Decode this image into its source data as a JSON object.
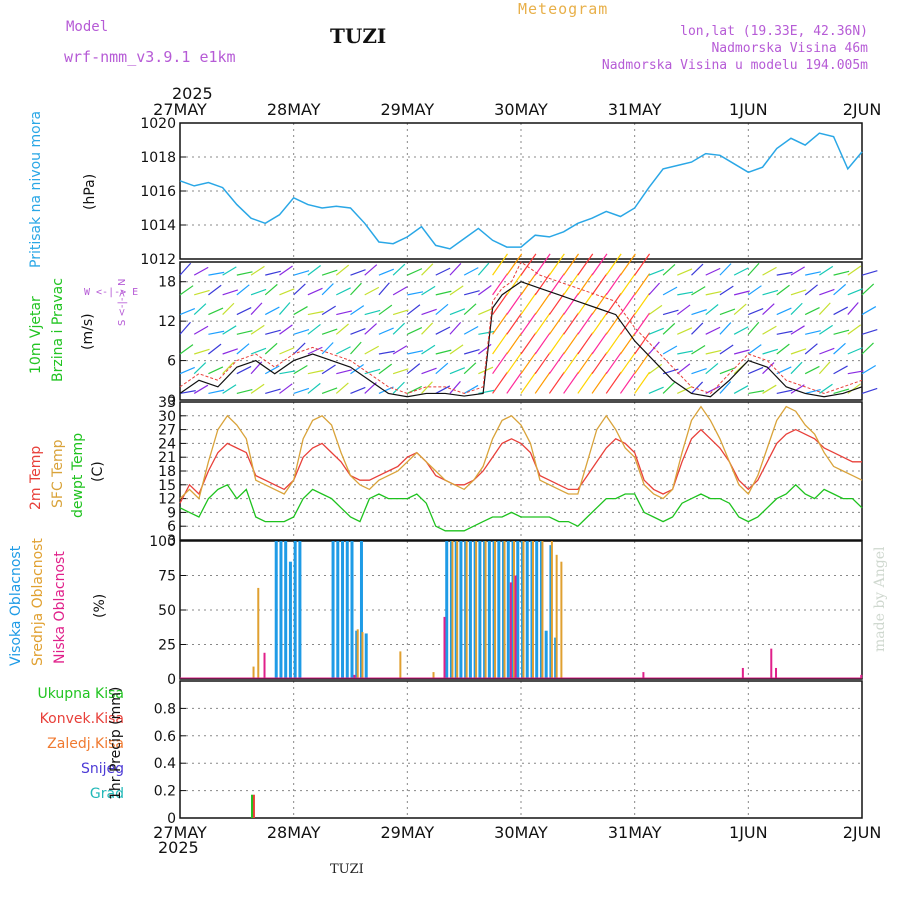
{
  "header": {
    "model_label": "Model",
    "model_name": "wrf-nmm_v3.9.1 e1km",
    "station": "TUZI",
    "meteogram": "Meteogram",
    "lonlat": "lon,lat (19.33E, 42.36N)",
    "elevation": "Nadmorska Visina 46m",
    "model_elevation": "Nadmorska Visina u modelu 194.005m",
    "year_top": "2025",
    "year_bottom": "2025",
    "footer_station": "TUZI",
    "credit": "made by Angel"
  },
  "colors": {
    "pressure": "#2aa7e6",
    "temp2m": "#e8403a",
    "sfc": "#d9a33a",
    "dewpt": "#1ec21e",
    "high": "#1e9be6",
    "mid": "#e0a030",
    "low": "#e0208a",
    "text_purple": "#b65bd6",
    "text_green": "#22c422",
    "text_orange": "#f07a30"
  },
  "panel_labels": {
    "pressure": [
      "Pritisak na nivou mora",
      "(hPa)"
    ],
    "wind": [
      "10m Vjetar",
      "Brzina i Pravac",
      "(m/s)"
    ],
    "compass": "W <-|-> E",
    "compass_ns": "S <-|-> N",
    "temp": [
      "2m Temp",
      "SFC Temp",
      "dewpt Temp",
      "(C)"
    ],
    "cloud": [
      "Visoka Oblacnost",
      "Srednja Oblacnost",
      "Niska Oblacnost",
      "(%)"
    ],
    "precip_legend": [
      "Ukupna Kisa",
      "Konvek.Kisa",
      "Zaledj.Kisa",
      "Snijeg",
      "Grad"
    ],
    "precip_axis": "1hr Precip (mm)"
  },
  "chart_data": [
    {
      "type": "line",
      "name": "pressure",
      "x_ticks": [
        "27MAY",
        "28MAY",
        "29MAY",
        "30MAY",
        "31MAY",
        "1JUN",
        "2JUN"
      ],
      "ylim": [
        1012,
        1020
      ],
      "yticks": [
        1012,
        1014,
        1016,
        1018,
        1020
      ],
      "grid": true,
      "series": [
        {
          "name": "Pritisak na nivou mora",
          "x": [
            0,
            3,
            6,
            9,
            12,
            15,
            18,
            21,
            24,
            27,
            30,
            33,
            36,
            39,
            42,
            45,
            48,
            51,
            54,
            57,
            60,
            63,
            66,
            69,
            72,
            75,
            78,
            81,
            84,
            87,
            90,
            93,
            96,
            99,
            102,
            105,
            108,
            111,
            114,
            117,
            120,
            123,
            126,
            129,
            132,
            135,
            138,
            141,
            144
          ],
          "values": [
            1016.6,
            1016.3,
            1016.5,
            1016.2,
            1015.2,
            1014.4,
            1014.1,
            1014.6,
            1015.6,
            1015.2,
            1015.0,
            1015.1,
            1015.0,
            1014.1,
            1013.0,
            1012.9,
            1013.3,
            1013.9,
            1012.8,
            1012.6,
            1013.2,
            1013.8,
            1013.1,
            1012.7,
            1012.7,
            1013.4,
            1013.3,
            1013.6,
            1014.1,
            1014.4,
            1014.8,
            1014.5,
            1015.0,
            1016.2,
            1017.3,
            1017.5,
            1017.7,
            1018.2,
            1018.1,
            1017.6,
            1017.1,
            1017.4,
            1018.5,
            1019.1,
            1018.7,
            1019.4,
            1019.2,
            1017.3,
            1018.3
          ]
        }
      ]
    },
    {
      "type": "line",
      "name": "wind",
      "ylim": [
        0,
        21
      ],
      "yticks": [
        0,
        6,
        12,
        18
      ],
      "grid": true,
      "series": [
        {
          "name": "speed",
          "x": [
            0,
            4,
            8,
            12,
            16,
            20,
            24,
            28,
            32,
            36,
            40,
            44,
            48,
            52,
            56,
            60,
            64,
            66,
            68,
            70,
            72,
            76,
            80,
            84,
            88,
            92,
            96,
            100,
            104,
            108,
            112,
            116,
            120,
            124,
            128,
            132,
            136,
            140,
            144
          ],
          "values": [
            1,
            3,
            2,
            5,
            6,
            4,
            6,
            7,
            6,
            5,
            3,
            1,
            0.5,
            1,
            1,
            0.6,
            1,
            14,
            16,
            17,
            18,
            17,
            16,
            15,
            14,
            13,
            9,
            6,
            3,
            1,
            0.5,
            3,
            6,
            5,
            2,
            1,
            0.5,
            1,
            2
          ]
        },
        {
          "name": "gust",
          "x": [
            0,
            4,
            8,
            12,
            16,
            20,
            24,
            28,
            32,
            36,
            40,
            44,
            48,
            52,
            56,
            60,
            64,
            66,
            68,
            70,
            72,
            76,
            80,
            84,
            88,
            92,
            96,
            100,
            104,
            108,
            112,
            116,
            120,
            124,
            128,
            132,
            136,
            140,
            144
          ],
          "values": [
            2,
            4,
            3,
            6,
            7,
            5,
            7,
            8,
            7,
            6,
            4,
            2,
            1,
            2,
            2,
            1,
            2,
            15,
            17,
            18,
            21,
            19,
            18,
            17,
            16,
            15,
            11,
            8,
            5,
            2,
            1,
            4,
            7,
            6,
            3,
            2,
            1,
            2,
            3
          ]
        }
      ]
    },
    {
      "type": "line",
      "name": "temperature",
      "ylim": [
        3,
        33
      ],
      "yticks": [
        3,
        6,
        9,
        12,
        15,
        18,
        21,
        24,
        27,
        30,
        33
      ],
      "grid": true,
      "x": [
        0,
        2,
        4,
        6,
        8,
        10,
        12,
        14,
        16,
        18,
        20,
        22,
        24,
        26,
        28,
        30,
        32,
        34,
        36,
        38,
        40,
        42,
        44,
        46,
        48,
        50,
        52,
        54,
        56,
        58,
        60,
        62,
        64,
        66,
        68,
        70,
        72,
        74,
        76,
        78,
        80,
        82,
        84,
        86,
        88,
        90,
        92,
        94,
        96,
        98,
        100,
        102,
        104,
        106,
        108,
        110,
        112,
        114,
        116,
        118,
        120,
        122,
        124,
        126,
        128,
        130,
        132,
        134,
        136,
        138,
        140,
        142,
        144
      ],
      "series": [
        {
          "name": "2m Temp",
          "values": [
            11,
            15,
            13,
            18,
            22,
            24,
            23,
            22,
            17,
            16,
            15,
            14,
            16,
            21,
            23,
            24,
            22,
            20,
            17,
            16,
            16,
            17,
            18,
            19,
            21,
            22,
            20,
            17,
            16,
            15,
            15,
            16,
            18,
            21,
            24,
            25,
            24,
            22,
            17,
            16,
            15,
            14,
            14,
            17,
            20,
            23,
            25,
            24,
            22,
            16,
            14,
            13,
            14,
            20,
            25,
            27,
            25,
            23,
            20,
            16,
            14,
            16,
            20,
            24,
            26,
            27,
            26,
            25,
            23,
            22,
            21,
            20,
            20
          ]
        },
        {
          "name": "SFC Temp",
          "values": [
            12,
            14,
            12,
            20,
            27,
            30,
            28,
            25,
            16,
            15,
            14,
            13,
            16,
            25,
            29,
            30,
            28,
            22,
            17,
            15,
            14,
            16,
            17,
            18,
            20,
            22,
            20,
            18,
            16,
            15,
            14,
            16,
            19,
            25,
            29,
            30,
            28,
            24,
            16,
            15,
            14,
            13,
            13,
            20,
            27,
            30,
            27,
            23,
            21,
            15,
            13,
            12,
            14,
            22,
            29,
            32,
            29,
            25,
            20,
            15,
            13,
            17,
            23,
            29,
            32,
            31,
            28,
            26,
            22,
            19,
            18,
            17,
            16
          ]
        },
        {
          "name": "dewpt Temp",
          "values": [
            10,
            9,
            8,
            12,
            14,
            15,
            12,
            14,
            8,
            7,
            7,
            7,
            8,
            12,
            14,
            13,
            12,
            10,
            8,
            7,
            12,
            13,
            12,
            12,
            12,
            13,
            11,
            6,
            5,
            5,
            5,
            6,
            7,
            8,
            8,
            9,
            8,
            8,
            8,
            8,
            7,
            7,
            6,
            8,
            10,
            12,
            12,
            13,
            13,
            9,
            8,
            7,
            8,
            11,
            12,
            13,
            12,
            12,
            11,
            8,
            7,
            8,
            10,
            12,
            13,
            15,
            13,
            12,
            14,
            13,
            12,
            12,
            10
          ]
        }
      ]
    },
    {
      "type": "bar",
      "name": "cloud cover",
      "ylim": [
        0,
        100
      ],
      "yticks": [
        0,
        25,
        50,
        75,
        100
      ],
      "grid": true,
      "series": [
        {
          "name": "Visoka Oblacnost",
          "x": [
            20,
            21,
            22,
            23,
            24,
            25,
            32,
            33,
            34,
            35,
            36,
            37,
            38,
            39,
            56,
            57,
            58,
            59,
            60,
            61,
            62,
            63,
            64,
            65,
            66,
            67,
            68,
            69,
            70,
            71,
            72,
            73,
            74,
            75,
            76,
            77,
            78,
            79
          ],
          "values": [
            100,
            100,
            100,
            85,
            100,
            100,
            100,
            100,
            100,
            100,
            100,
            35,
            100,
            33,
            100,
            100,
            100,
            100,
            100,
            100,
            100,
            100,
            100,
            100,
            100,
            100,
            100,
            100,
            100,
            100,
            100,
            100,
            100,
            100,
            100,
            35,
            97,
            30
          ]
        },
        {
          "name": "Srednja Oblacnost",
          "x": [
            15,
            16,
            37,
            38,
            46,
            53,
            57,
            58,
            60,
            62,
            64,
            66,
            68,
            70,
            72,
            74,
            76,
            78,
            79,
            80
          ],
          "values": [
            9,
            66,
            36,
            34,
            20,
            5,
            100,
            100,
            100,
            100,
            100,
            100,
            100,
            100,
            100,
            100,
            100,
            100,
            90,
            85
          ]
        },
        {
          "name": "Niska Oblacnost",
          "x": [
            17,
            36,
            55,
            69,
            70,
            97,
            118,
            124,
            125,
            143
          ],
          "values": [
            19,
            3,
            45,
            70,
            75,
            5,
            8,
            22,
            8,
            3
          ]
        }
      ]
    },
    {
      "type": "bar",
      "name": "precipitation",
      "ylim": [
        0,
        1.0
      ],
      "yticks": [
        0,
        0.2,
        0.4,
        0.6,
        0.8
      ],
      "grid": true,
      "series": [
        {
          "name": "Ukupna Kisa",
          "x": [
            15
          ],
          "values": [
            0.17
          ]
        },
        {
          "name": "Konvek.Kisa",
          "x": [
            15.4
          ],
          "values": [
            0.17
          ]
        }
      ]
    }
  ]
}
